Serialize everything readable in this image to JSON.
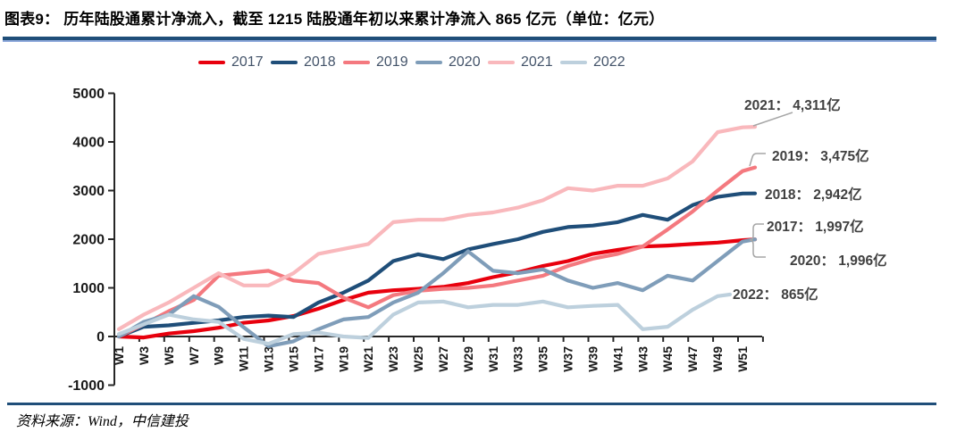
{
  "header": {
    "title_prefix": "图表9：",
    "title_text": "历年陆股通累计净流入，截至 1215 陆股通年初以来累计净流入 865 亿元（单位：亿元）"
  },
  "legend": [
    {
      "year": "2017",
      "color": "#e8000d"
    },
    {
      "year": "2018",
      "color": "#1f4e79"
    },
    {
      "year": "2019",
      "color": "#f4797f"
    },
    {
      "year": "2020",
      "color": "#7f9db9"
    },
    {
      "year": "2021",
      "color": "#f9b8bc"
    },
    {
      "year": "2022",
      "color": "#bdd0dd"
    }
  ],
  "chart_data": {
    "type": "line",
    "title": "历年陆股通累计净流入（单位：亿元）",
    "xlabel": "",
    "ylabel": "",
    "ylim": [
      -1000,
      5000
    ],
    "y_ticks": [
      -1000,
      0,
      1000,
      2000,
      3000,
      4000,
      5000
    ],
    "x_tick_labels": [
      "W1",
      "W3",
      "W5",
      "W7",
      "W9",
      "W11",
      "W13",
      "W15",
      "W17",
      "W19",
      "W21",
      "W23",
      "W25",
      "W27",
      "W29",
      "W31",
      "W33",
      "W35",
      "W37",
      "W39",
      "W41",
      "W43",
      "W45",
      "W47",
      "W49",
      "W51"
    ],
    "grid": false,
    "legend_position": "top",
    "series": [
      {
        "name": "2017",
        "color": "#e8000d",
        "final_value": 1997,
        "x": [
          1,
          3,
          5,
          7,
          9,
          11,
          13,
          15,
          17,
          19,
          21,
          23,
          25,
          27,
          29,
          31,
          33,
          35,
          37,
          39,
          41,
          43,
          45,
          47,
          49,
          51,
          52
        ],
        "values": [
          0,
          -20,
          60,
          110,
          180,
          280,
          330,
          420,
          570,
          750,
          900,
          950,
          980,
          1020,
          1100,
          1220,
          1320,
          1450,
          1550,
          1700,
          1780,
          1850,
          1870,
          1900,
          1930,
          1980,
          1997
        ]
      },
      {
        "name": "2018",
        "color": "#1f4e79",
        "final_value": 2942,
        "x": [
          1,
          3,
          5,
          7,
          9,
          11,
          13,
          15,
          17,
          19,
          21,
          23,
          25,
          27,
          29,
          31,
          33,
          35,
          37,
          39,
          41,
          43,
          45,
          47,
          49,
          51,
          52
        ],
        "values": [
          0,
          200,
          230,
          280,
          330,
          400,
          430,
          400,
          700,
          900,
          1150,
          1550,
          1690,
          1590,
          1790,
          1900,
          2000,
          2150,
          2250,
          2280,
          2350,
          2500,
          2400,
          2700,
          2870,
          2940,
          2942
        ]
      },
      {
        "name": "2019",
        "color": "#f4797f",
        "final_value": 3475,
        "x": [
          1,
          3,
          5,
          7,
          9,
          11,
          13,
          15,
          17,
          19,
          21,
          23,
          25,
          27,
          29,
          31,
          33,
          35,
          37,
          39,
          41,
          43,
          45,
          47,
          49,
          51,
          52
        ],
        "values": [
          0,
          250,
          520,
          750,
          1250,
          1300,
          1350,
          1150,
          1100,
          800,
          600,
          850,
          940,
          980,
          1000,
          1050,
          1150,
          1250,
          1450,
          1600,
          1700,
          1850,
          2200,
          2570,
          3000,
          3400,
          3475
        ]
      },
      {
        "name": "2020",
        "color": "#7f9db9",
        "final_value": 1996,
        "x": [
          1,
          3,
          5,
          7,
          9,
          11,
          13,
          15,
          17,
          19,
          21,
          23,
          25,
          27,
          29,
          31,
          33,
          35,
          37,
          39,
          41,
          43,
          45,
          47,
          49,
          51,
          52
        ],
        "values": [
          0,
          300,
          450,
          830,
          610,
          190,
          -200,
          -100,
          150,
          350,
          400,
          700,
          900,
          1300,
          1750,
          1350,
          1300,
          1380,
          1150,
          1000,
          1100,
          950,
          1250,
          1150,
          1550,
          1950,
          1996
        ]
      },
      {
        "name": "2021",
        "color": "#f9b8bc",
        "final_value": 4311,
        "x": [
          1,
          3,
          5,
          7,
          9,
          11,
          13,
          15,
          17,
          19,
          21,
          23,
          25,
          27,
          29,
          31,
          33,
          35,
          37,
          39,
          41,
          43,
          45,
          47,
          49,
          51,
          52
        ],
        "values": [
          150,
          450,
          700,
          1000,
          1300,
          1050,
          1050,
          1300,
          1700,
          1800,
          1900,
          2350,
          2400,
          2400,
          2500,
          2550,
          2650,
          2800,
          3050,
          3000,
          3100,
          3100,
          3250,
          3600,
          4200,
          4300,
          4311
        ]
      },
      {
        "name": "2022",
        "color": "#bdd0dd",
        "final_value": 865,
        "x": [
          1,
          3,
          5,
          7,
          9,
          11,
          13,
          15,
          17,
          19,
          21,
          23,
          25,
          27,
          29,
          31,
          33,
          35,
          37,
          39,
          41,
          43,
          45,
          47,
          49,
          50
        ],
        "values": [
          50,
          250,
          450,
          350,
          300,
          -50,
          -150,
          50,
          80,
          0,
          -30,
          450,
          700,
          720,
          600,
          650,
          650,
          720,
          600,
          630,
          650,
          150,
          200,
          550,
          830,
          865
        ]
      }
    ]
  },
  "annotations": [
    {
      "label": "2021： 4,311亿"
    },
    {
      "label": "2019： 3,475亿"
    },
    {
      "label": "2018： 2,942亿"
    },
    {
      "label": "2017： 1,997亿"
    },
    {
      "label": "2020： 1,996亿"
    },
    {
      "label": "2022： 865亿"
    }
  ],
  "footer": {
    "source": "资料来源：Wind，中信建投"
  }
}
